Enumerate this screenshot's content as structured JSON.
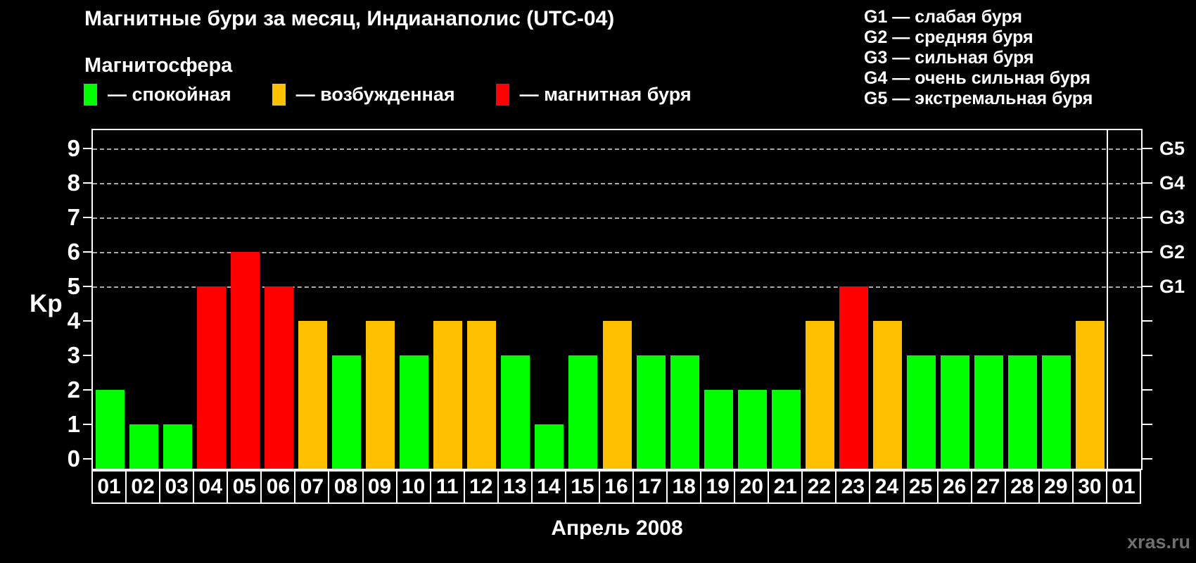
{
  "chart_data": {
    "type": "bar",
    "title": "Магнитные бури за месяц, Индианаполис (UTC-04)",
    "subtitle": "Магнитосфера",
    "xlabel": "Апрель 2008",
    "ylabel": "Kp",
    "ylim": [
      0,
      9
    ],
    "yticks": [
      0,
      1,
      2,
      3,
      4,
      5,
      6,
      7,
      8,
      9
    ],
    "grid_levels_kp": [
      5,
      6,
      7,
      8,
      9
    ],
    "grid_on": true,
    "legend_position": "top-left",
    "colors": {
      "quiet": "#00FF00",
      "excited": "#FFC000",
      "storm": "#FF0000",
      "background": "#000000",
      "axis": "#FFFFFF",
      "grid": "#AAAAAA",
      "watermark": "#6F6F6F"
    },
    "legend": [
      {
        "level": "quiet",
        "color": "#00FF00",
        "label": "— спокойная"
      },
      {
        "level": "excited",
        "color": "#FFC000",
        "label": "— возбужденная"
      },
      {
        "level": "storm",
        "color": "#FF0000",
        "label": "— магнитная буря"
      }
    ],
    "storm_scale": [
      {
        "tick": "G1",
        "kp": 5,
        "label": "G1 — слабая буря"
      },
      {
        "tick": "G2",
        "kp": 6,
        "label": "G2 — средняя буря"
      },
      {
        "tick": "G3",
        "kp": 7,
        "label": "G3 — сильная буря"
      },
      {
        "tick": "G4",
        "kp": 8,
        "label": "G4 — очень сильная буря"
      },
      {
        "tick": "G5",
        "kp": 9,
        "label": "G5 — экстремальная буря"
      }
    ],
    "categories": [
      "01",
      "02",
      "03",
      "04",
      "05",
      "06",
      "07",
      "08",
      "09",
      "10",
      "11",
      "12",
      "13",
      "14",
      "15",
      "16",
      "17",
      "18",
      "19",
      "20",
      "21",
      "22",
      "23",
      "24",
      "25",
      "26",
      "27",
      "28",
      "29",
      "30",
      "01"
    ],
    "values": [
      2,
      1,
      1,
      5,
      6,
      5,
      4,
      3,
      4,
      3,
      4,
      4,
      3,
      1,
      3,
      4,
      3,
      3,
      2,
      2,
      2,
      4,
      5,
      4,
      3,
      3,
      3,
      3,
      3,
      4,
      null
    ],
    "bars": [
      {
        "day": "01",
        "kp": 2,
        "level": "quiet"
      },
      {
        "day": "02",
        "kp": 1,
        "level": "quiet"
      },
      {
        "day": "03",
        "kp": 1,
        "level": "quiet"
      },
      {
        "day": "04",
        "kp": 5,
        "level": "storm"
      },
      {
        "day": "05",
        "kp": 6,
        "level": "storm"
      },
      {
        "day": "06",
        "kp": 5,
        "level": "storm"
      },
      {
        "day": "07",
        "kp": 4,
        "level": "excited"
      },
      {
        "day": "08",
        "kp": 3,
        "level": "quiet"
      },
      {
        "day": "09",
        "kp": 4,
        "level": "excited"
      },
      {
        "day": "10",
        "kp": 3,
        "level": "quiet"
      },
      {
        "day": "11",
        "kp": 4,
        "level": "excited"
      },
      {
        "day": "12",
        "kp": 4,
        "level": "excited"
      },
      {
        "day": "13",
        "kp": 3,
        "level": "quiet"
      },
      {
        "day": "14",
        "kp": 1,
        "level": "quiet"
      },
      {
        "day": "15",
        "kp": 3,
        "level": "quiet"
      },
      {
        "day": "16",
        "kp": 4,
        "level": "excited"
      },
      {
        "day": "17",
        "kp": 3,
        "level": "quiet"
      },
      {
        "day": "18",
        "kp": 3,
        "level": "quiet"
      },
      {
        "day": "19",
        "kp": 2,
        "level": "quiet"
      },
      {
        "day": "20",
        "kp": 2,
        "level": "quiet"
      },
      {
        "day": "21",
        "kp": 2,
        "level": "quiet"
      },
      {
        "day": "22",
        "kp": 4,
        "level": "excited"
      },
      {
        "day": "23",
        "kp": 5,
        "level": "storm"
      },
      {
        "day": "24",
        "kp": 4,
        "level": "excited"
      },
      {
        "day": "25",
        "kp": 3,
        "level": "quiet"
      },
      {
        "day": "26",
        "kp": 3,
        "level": "quiet"
      },
      {
        "day": "27",
        "kp": 3,
        "level": "quiet"
      },
      {
        "day": "28",
        "kp": 3,
        "level": "quiet"
      },
      {
        "day": "29",
        "kp": 3,
        "level": "quiet"
      },
      {
        "day": "30",
        "kp": 4,
        "level": "excited"
      },
      {
        "day": "01",
        "kp": null,
        "level": null
      }
    ],
    "watermark": "xras.ru"
  }
}
